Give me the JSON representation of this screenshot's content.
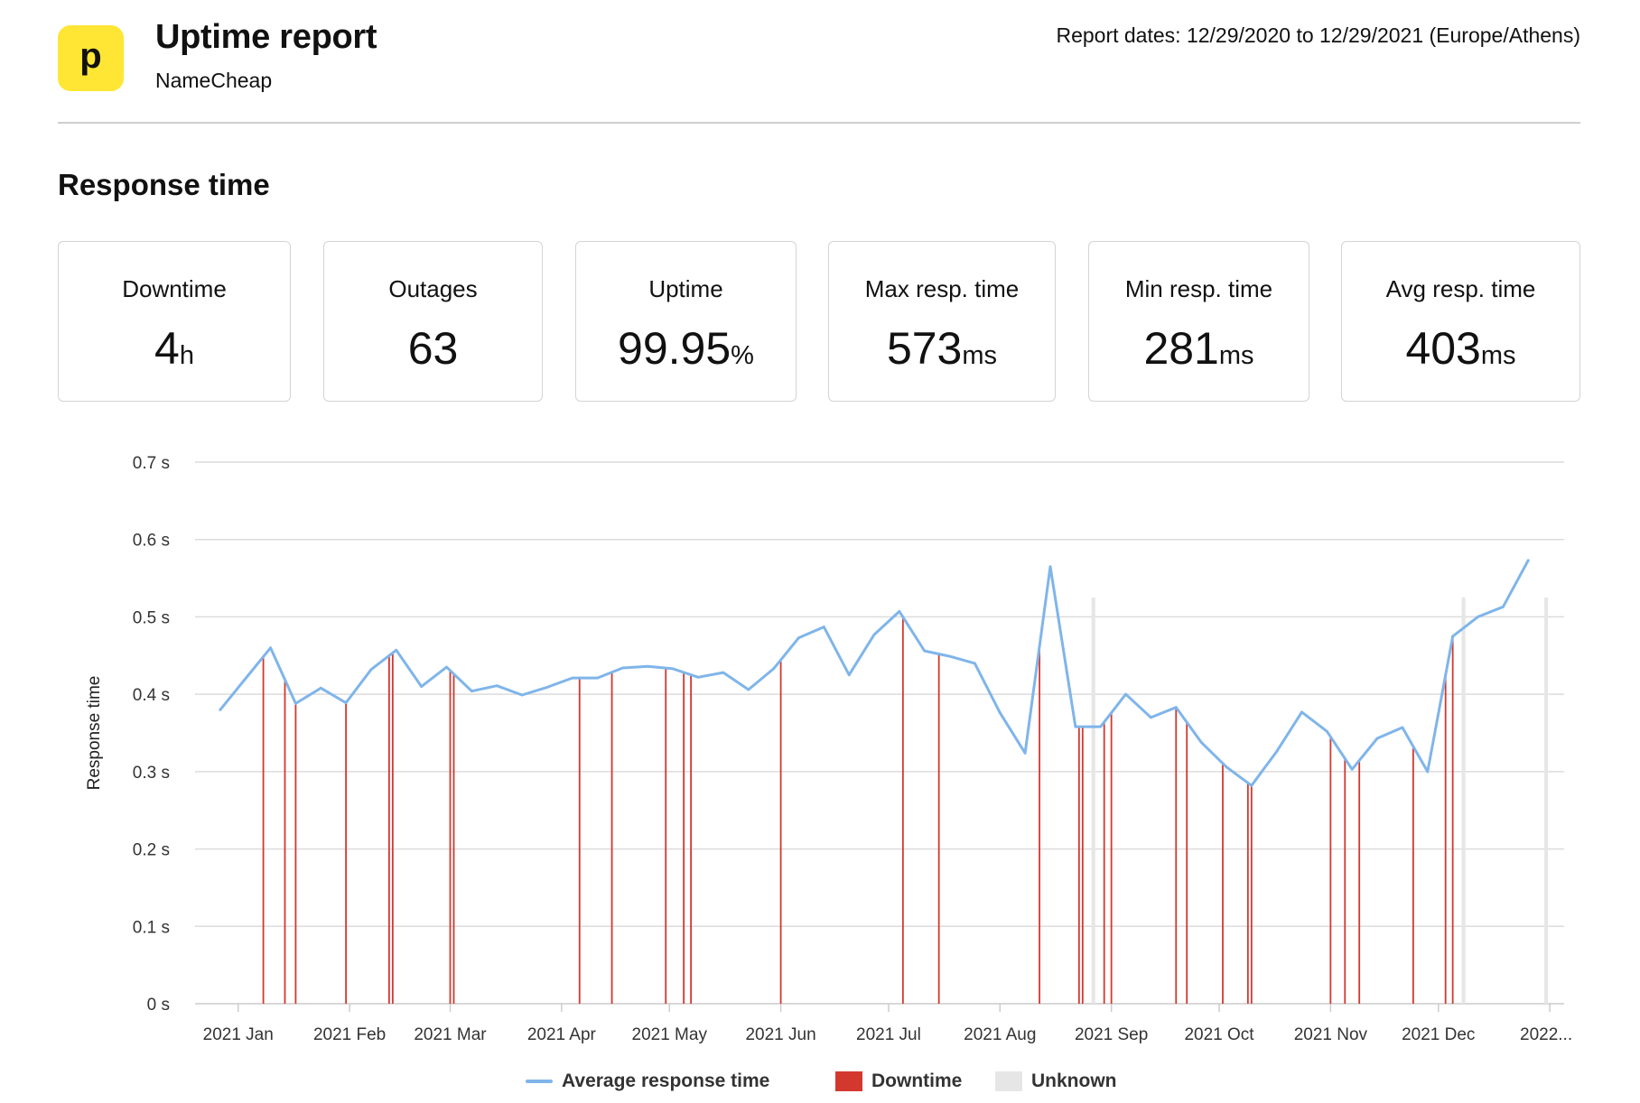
{
  "header": {
    "logo_letter": "p",
    "title": "Uptime report",
    "subtitle": "NameCheap",
    "report_dates": "Report dates: 12/29/2020 to 12/29/2021 (Europe/Athens)"
  },
  "section_title": "Response time",
  "stats": [
    {
      "label": "Downtime",
      "value": "4",
      "unit": "h"
    },
    {
      "label": "Outages",
      "value": "63",
      "unit": ""
    },
    {
      "label": "Uptime",
      "value": "99.95",
      "unit": "%"
    },
    {
      "label": "Max resp. time",
      "value": "573",
      "unit": "ms"
    },
    {
      "label": "Min resp. time",
      "value": "281",
      "unit": "ms"
    },
    {
      "label": "Avg resp. time",
      "value": "403",
      "unit": "ms"
    }
  ],
  "colors": {
    "line": "#7fb5ea",
    "downtime": "#d3382f",
    "unknown": "#e6e6e6",
    "grid": "#dcdcdc",
    "logo": "#ffe634"
  },
  "chart_data": {
    "type": "line",
    "ylabel": "Response time",
    "ylim": [
      0,
      0.7
    ],
    "y_ticks": [
      "0 s",
      "0.1 s",
      "0.2 s",
      "0.3 s",
      "0.4 s",
      "0.5 s",
      "0.6 s",
      "0.7 s"
    ],
    "x_ticks": [
      "2021 Jan",
      "2021 Feb",
      "2021 Mar",
      "2021 Apr",
      "2021 May",
      "2021 Jun",
      "2021 Jul",
      "2021 Aug",
      "2021 Sep",
      "2021 Oct",
      "2021 Nov",
      "2021 Dec",
      "2022..."
    ],
    "grid": true,
    "legend_position": "bottom",
    "series": [
      {
        "name": "Average response time",
        "x": [
          "2020-12-27",
          "2021-01-03",
          "2021-01-10",
          "2021-01-17",
          "2021-01-24",
          "2021-01-31",
          "2021-02-07",
          "2021-02-14",
          "2021-02-21",
          "2021-02-28",
          "2021-03-07",
          "2021-03-14",
          "2021-03-21",
          "2021-03-28",
          "2021-04-04",
          "2021-04-11",
          "2021-04-18",
          "2021-04-25",
          "2021-05-02",
          "2021-05-09",
          "2021-05-16",
          "2021-05-23",
          "2021-05-30",
          "2021-06-06",
          "2021-06-13",
          "2021-06-20",
          "2021-06-27",
          "2021-07-04",
          "2021-07-11",
          "2021-07-18",
          "2021-07-25",
          "2021-08-01",
          "2021-08-08",
          "2021-08-15",
          "2021-08-22",
          "2021-08-29",
          "2021-09-05",
          "2021-09-12",
          "2021-09-19",
          "2021-09-26",
          "2021-10-03",
          "2021-10-10",
          "2021-10-17",
          "2021-10-24",
          "2021-10-31",
          "2021-11-07",
          "2021-11-14",
          "2021-11-21",
          "2021-11-28",
          "2021-12-05",
          "2021-12-12",
          "2021-12-19",
          "2021-12-26"
        ],
        "values": [
          0.38,
          0.42,
          0.46,
          0.388,
          0.408,
          0.389,
          0.432,
          0.457,
          0.41,
          0.435,
          0.404,
          0.411,
          0.399,
          0.409,
          0.421,
          0.421,
          0.434,
          0.436,
          0.433,
          0.422,
          0.428,
          0.406,
          0.433,
          0.473,
          0.487,
          0.425,
          0.477,
          0.507,
          0.456,
          0.449,
          0.44,
          0.376,
          0.324,
          0.565,
          0.358,
          0.358,
          0.4,
          0.37,
          0.383,
          0.338,
          0.306,
          0.282,
          0.326,
          0.377,
          0.352,
          0.303,
          0.343,
          0.357,
          0.3,
          0.475,
          0.5,
          0.513,
          0.573
        ]
      },
      {
        "name": "Downtime",
        "type": "events",
        "x": [
          "2021-01-08",
          "2021-01-14",
          "2021-01-17",
          "2021-01-31",
          "2021-02-12",
          "2021-02-13",
          "2021-03-01",
          "2021-03-02",
          "2021-04-06",
          "2021-04-15",
          "2021-04-30",
          "2021-05-05",
          "2021-05-07",
          "2021-06-01",
          "2021-07-05",
          "2021-07-15",
          "2021-08-12",
          "2021-08-23",
          "2021-08-24",
          "2021-08-30",
          "2021-09-01",
          "2021-09-19",
          "2021-09-22",
          "2021-10-02",
          "2021-10-09",
          "2021-10-10",
          "2021-11-01",
          "2021-11-05",
          "2021-11-09",
          "2021-11-24",
          "2021-12-03",
          "2021-12-05"
        ]
      },
      {
        "name": "Unknown",
        "type": "events",
        "x": [
          "2021-08-27",
          "2021-12-08",
          "2021-12-31"
        ]
      }
    ]
  }
}
